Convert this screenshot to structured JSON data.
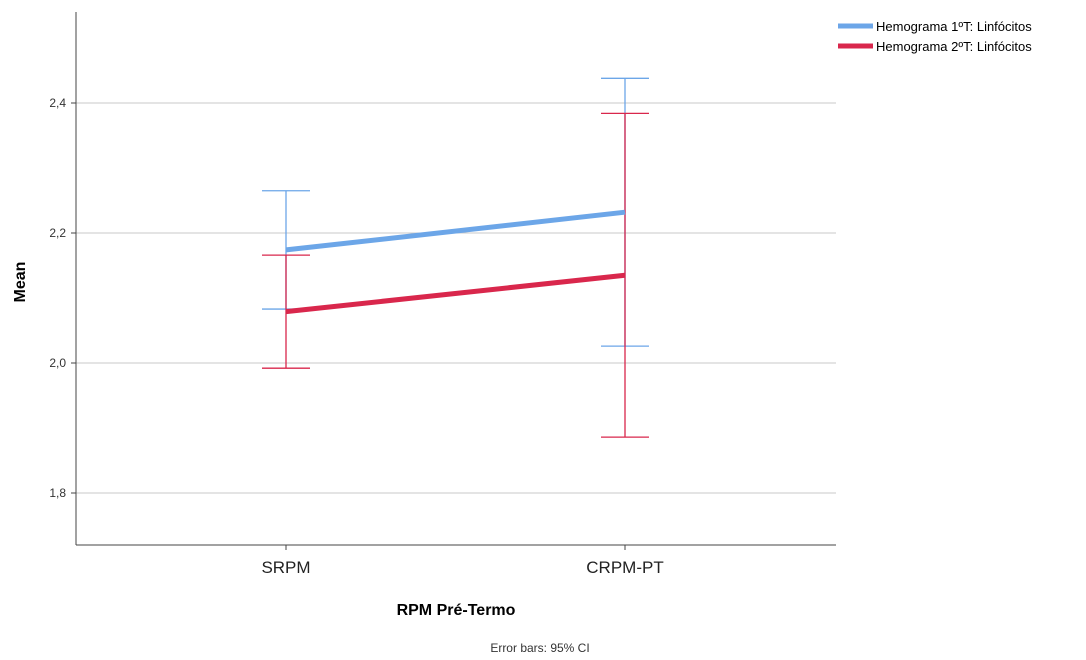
{
  "chart_data": {
    "type": "line",
    "title": "",
    "xlabel": "RPM Pré-Termo",
    "ylabel": "Mean",
    "categories": [
      "SRPM",
      "CRPM-PT"
    ],
    "ylim": [
      1.72,
      2.54
    ],
    "yticks": [
      1.8,
      2.0,
      2.2,
      2.4
    ],
    "ytick_labels": [
      "1,8",
      "2,0",
      "2,2",
      "2,4"
    ],
    "grid": true,
    "legend_position": "top-right",
    "series": [
      {
        "name": "Hemograma 1ºT: Linfócitos",
        "color": "#6ca6e8",
        "values": [
          2.174,
          2.232
        ],
        "ci_lower": [
          2.083,
          2.026
        ],
        "ci_upper": [
          2.265,
          2.438
        ]
      },
      {
        "name": "Hemograma 2ºT: Linfócitos",
        "color": "#d9274c",
        "values": [
          2.079,
          2.135
        ],
        "ci_lower": [
          1.992,
          1.886
        ],
        "ci_upper": [
          2.166,
          2.384
        ]
      }
    ],
    "footnote": "Error bars: 95% CI"
  }
}
